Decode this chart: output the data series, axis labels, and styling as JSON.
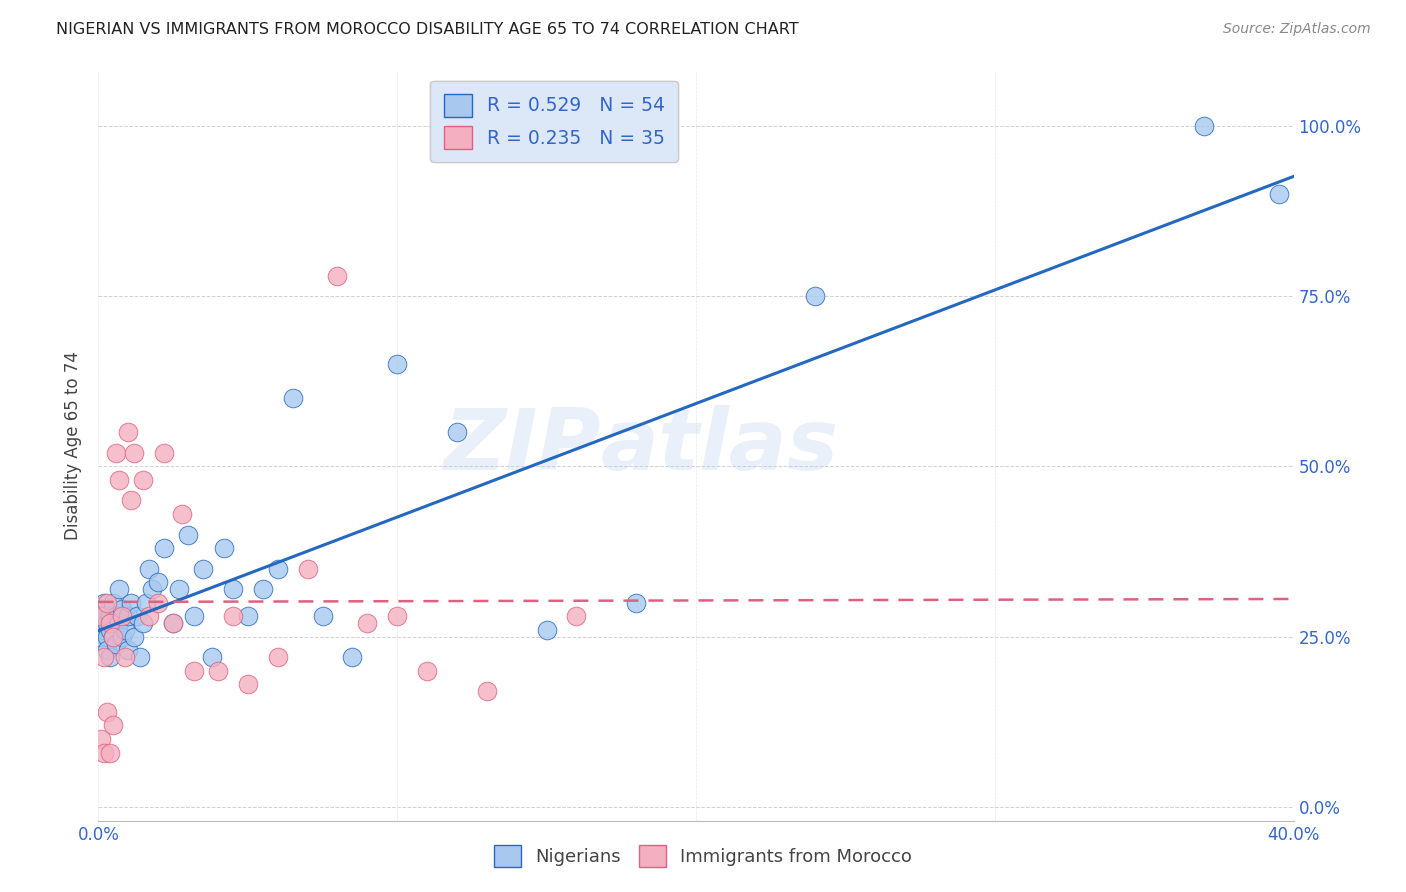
{
  "title": "NIGERIAN VS IMMIGRANTS FROM MOROCCO DISABILITY AGE 65 TO 74 CORRELATION CHART",
  "source": "Source: ZipAtlas.com",
  "ylabel": "Disability Age 65 to 74",
  "xlim": [
    0.0,
    0.4
  ],
  "ylim": [
    -0.02,
    1.08
  ],
  "nigerian_R": 0.529,
  "nigerian_N": 54,
  "morocco_R": 0.235,
  "morocco_N": 35,
  "nigerian_color": "#a8c8f0",
  "morocco_color": "#f4b0c0",
  "nigerian_line_color": "#2468c0",
  "morocco_line_color": "#e06080",
  "watermark": "ZIPatlas",
  "legend_bg_color": "#dce8f8",
  "xticks": [
    0.0,
    0.1,
    0.2,
    0.3,
    0.4
  ],
  "xtick_labels": [
    "0.0%",
    "",
    "",
    "",
    "40.0%"
  ],
  "yticks": [
    0.0,
    0.25,
    0.5,
    0.75,
    1.0
  ],
  "ytick_labels_right": [
    "0.0%",
    "25.0%",
    "50.0%",
    "75.0%",
    "100.0%"
  ],
  "nigerian_x": [
    0.001,
    0.001,
    0.001,
    0.002,
    0.002,
    0.002,
    0.003,
    0.003,
    0.003,
    0.004,
    0.004,
    0.004,
    0.005,
    0.005,
    0.006,
    0.006,
    0.007,
    0.007,
    0.008,
    0.008,
    0.009,
    0.01,
    0.01,
    0.011,
    0.012,
    0.013,
    0.014,
    0.015,
    0.016,
    0.017,
    0.018,
    0.02,
    0.022,
    0.025,
    0.027,
    0.03,
    0.032,
    0.035,
    0.038,
    0.042,
    0.045,
    0.05,
    0.055,
    0.06,
    0.065,
    0.075,
    0.085,
    0.1,
    0.12,
    0.15,
    0.18,
    0.24,
    0.37,
    0.395
  ],
  "nigerian_y": [
    0.29,
    0.27,
    0.25,
    0.3,
    0.28,
    0.26,
    0.27,
    0.25,
    0.23,
    0.28,
    0.26,
    0.22,
    0.3,
    0.25,
    0.28,
    0.24,
    0.32,
    0.27,
    0.29,
    0.25,
    0.26,
    0.28,
    0.23,
    0.3,
    0.25,
    0.28,
    0.22,
    0.27,
    0.3,
    0.35,
    0.32,
    0.33,
    0.38,
    0.27,
    0.32,
    0.4,
    0.28,
    0.35,
    0.22,
    0.38,
    0.32,
    0.28,
    0.32,
    0.35,
    0.6,
    0.28,
    0.22,
    0.65,
    0.55,
    0.26,
    0.3,
    0.75,
    1.0,
    0.9
  ],
  "morocco_x": [
    0.001,
    0.001,
    0.002,
    0.002,
    0.003,
    0.003,
    0.004,
    0.004,
    0.005,
    0.005,
    0.006,
    0.007,
    0.008,
    0.009,
    0.01,
    0.011,
    0.012,
    0.015,
    0.017,
    0.02,
    0.022,
    0.025,
    0.028,
    0.032,
    0.04,
    0.045,
    0.05,
    0.06,
    0.07,
    0.08,
    0.09,
    0.1,
    0.11,
    0.13,
    0.16
  ],
  "morocco_y": [
    0.28,
    0.1,
    0.22,
    0.08,
    0.3,
    0.14,
    0.27,
    0.08,
    0.25,
    0.12,
    0.52,
    0.48,
    0.28,
    0.22,
    0.55,
    0.45,
    0.52,
    0.48,
    0.28,
    0.3,
    0.52,
    0.27,
    0.43,
    0.2,
    0.2,
    0.28,
    0.18,
    0.22,
    0.35,
    0.78,
    0.27,
    0.28,
    0.2,
    0.17,
    0.28
  ]
}
